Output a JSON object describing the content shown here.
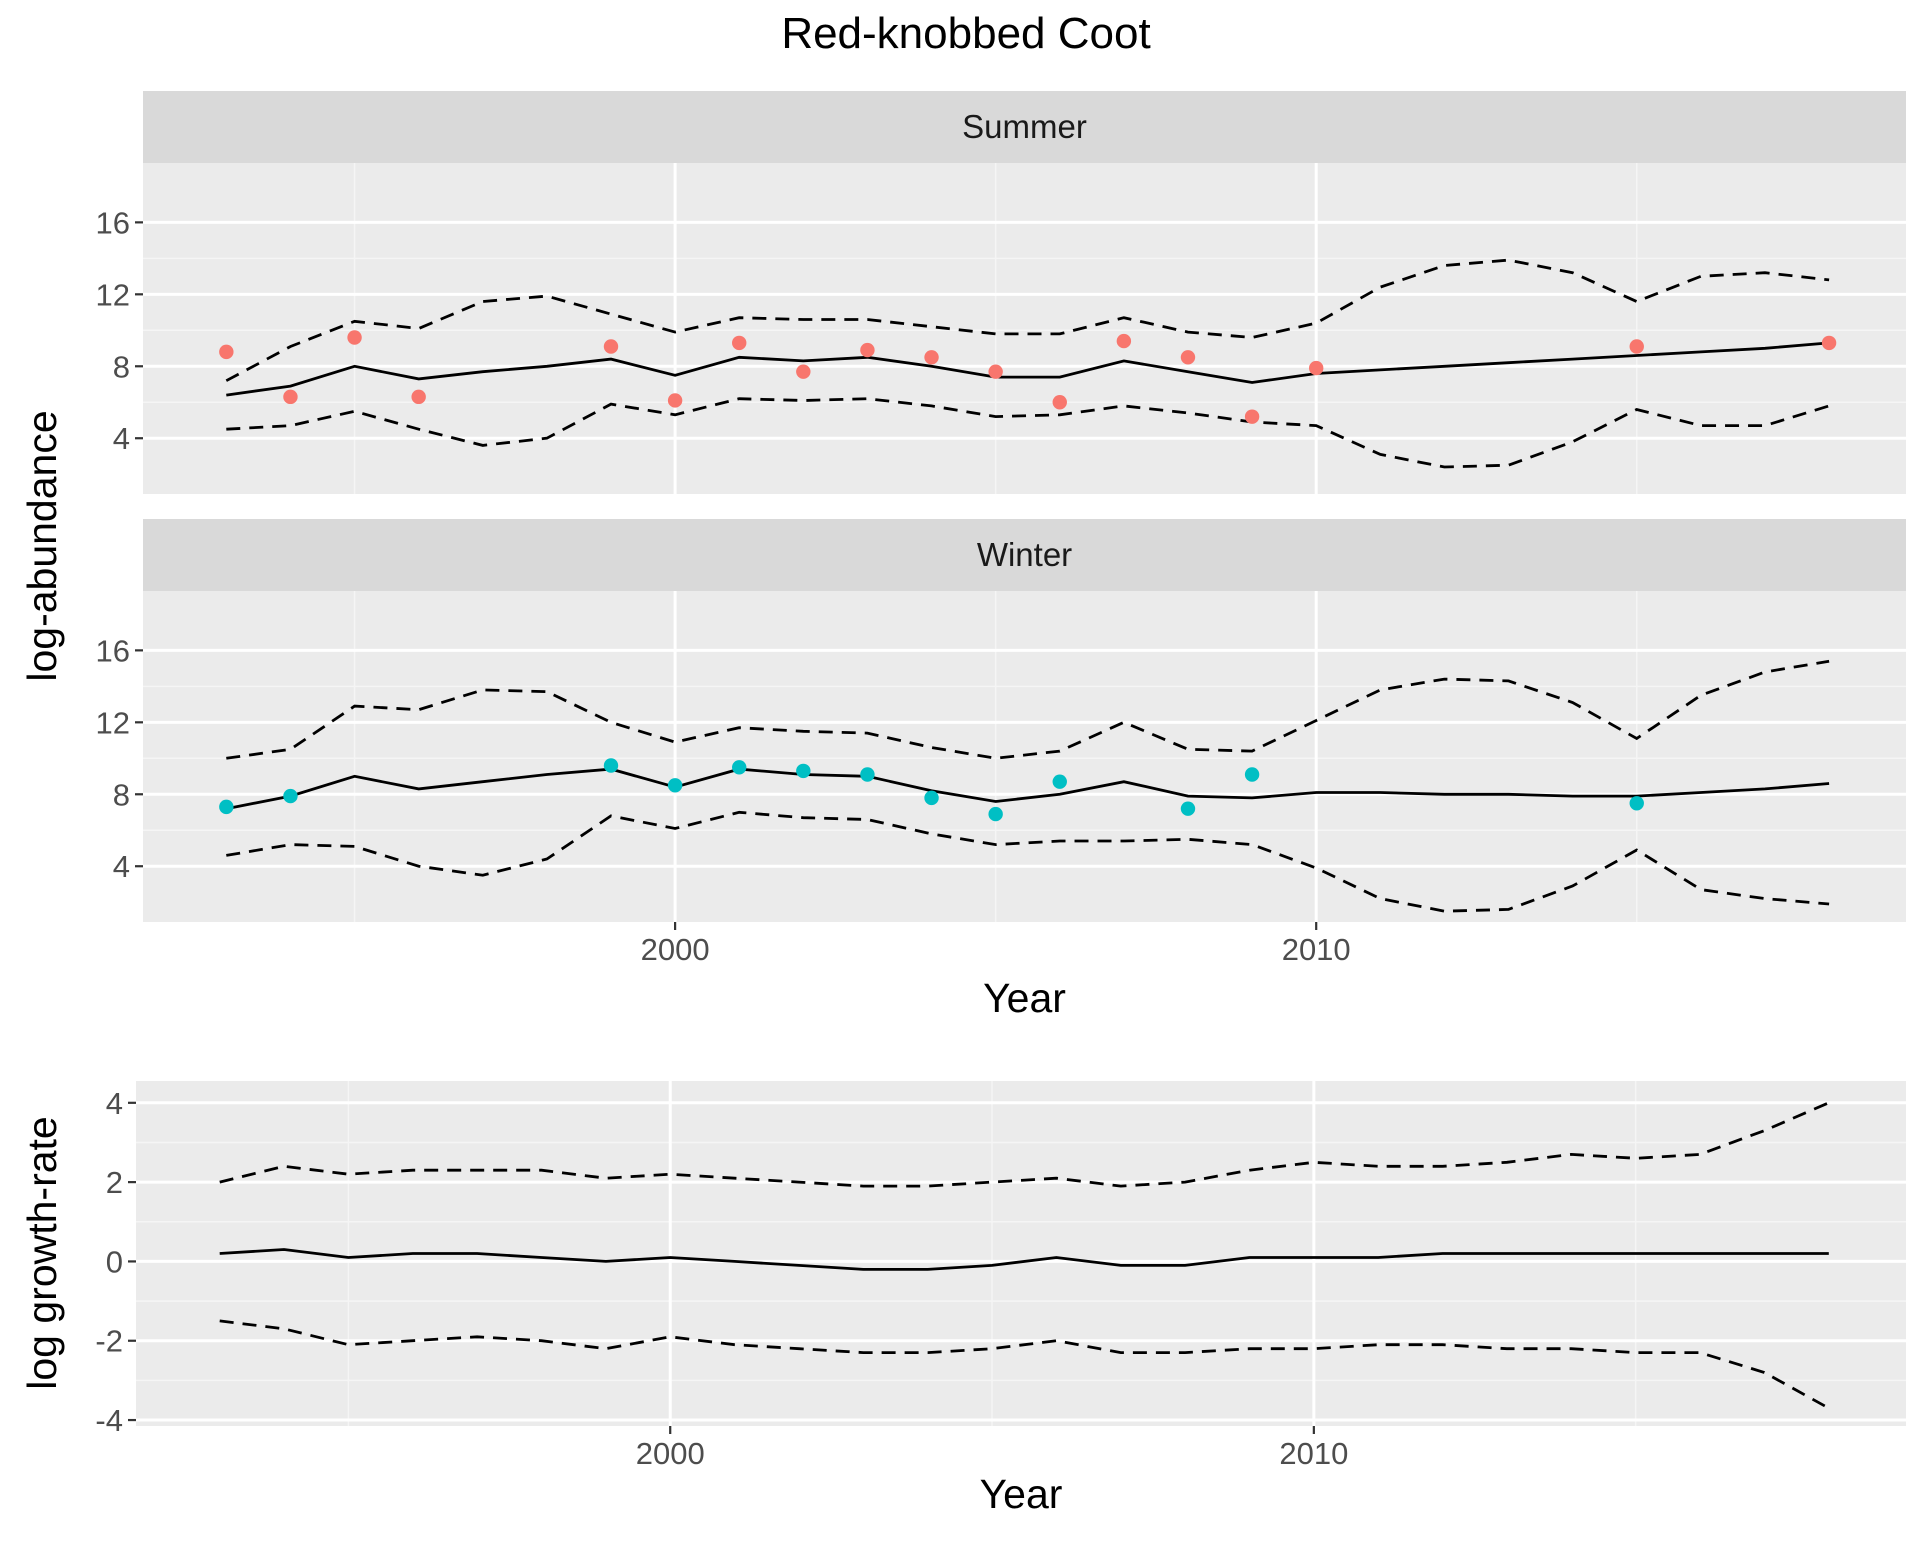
{
  "chart_data": {
    "title": "Red-knobbed Coot",
    "panels": [
      {
        "type": "line",
        "strip": "Summer",
        "ylabel": "log-abundance",
        "ylim": [
          0.9,
          19.3
        ],
        "yticks": [
          4,
          8,
          12,
          16
        ],
        "x": [
          1993,
          1994,
          1995,
          1996,
          1997,
          1998,
          1999,
          2000,
          2001,
          2002,
          2003,
          2004,
          2005,
          2006,
          2007,
          2008,
          2009,
          2010,
          2011,
          2012,
          2013,
          2014,
          2015,
          2016,
          2017,
          2018
        ],
        "fit": [
          6.4,
          6.9,
          8.0,
          7.3,
          7.7,
          8.0,
          8.4,
          7.5,
          8.5,
          8.3,
          8.5,
          8.0,
          7.4,
          7.4,
          8.3,
          7.7,
          7.1,
          7.6,
          7.8,
          8.0,
          8.2,
          8.4,
          8.6,
          8.8,
          9.0,
          9.3
        ],
        "upper": [
          7.2,
          9.1,
          10.5,
          10.1,
          11.6,
          11.9,
          10.9,
          9.9,
          10.7,
          10.6,
          10.6,
          10.2,
          9.8,
          9.8,
          10.7,
          9.9,
          9.6,
          10.4,
          12.4,
          13.6,
          13.9,
          13.2,
          11.6,
          13.0,
          13.2,
          12.8
        ],
        "lower": [
          4.5,
          4.7,
          5.5,
          4.5,
          3.6,
          4.0,
          5.9,
          5.3,
          6.2,
          6.1,
          6.2,
          5.8,
          5.2,
          5.3,
          5.8,
          5.4,
          4.9,
          4.7,
          3.1,
          2.4,
          2.5,
          3.8,
          5.6,
          4.7,
          4.7,
          5.8
        ],
        "points": {
          "color": "#F8766D",
          "x": [
            1993,
            1994,
            1995,
            1996,
            1999,
            2000,
            2001,
            2002,
            2003,
            2004,
            2005,
            2006,
            2007,
            2008,
            2009,
            2010,
            2015,
            2018
          ],
          "y": [
            8.8,
            6.3,
            9.6,
            6.3,
            9.1,
            6.1,
            9.3,
            7.7,
            8.9,
            8.5,
            7.7,
            6.0,
            9.4,
            8.5,
            5.2,
            7.9,
            9.1,
            9.3
          ]
        }
      },
      {
        "type": "line",
        "strip": "Winter",
        "ylabel": "log-abundance",
        "ylim": [
          0.9,
          19.3
        ],
        "yticks": [
          4,
          8,
          12,
          16
        ],
        "x": [
          1993,
          1994,
          1995,
          1996,
          1997,
          1998,
          1999,
          2000,
          2001,
          2002,
          2003,
          2004,
          2005,
          2006,
          2007,
          2008,
          2009,
          2010,
          2011,
          2012,
          2013,
          2014,
          2015,
          2016,
          2017,
          2018
        ],
        "fit": [
          7.2,
          7.9,
          9.0,
          8.3,
          8.7,
          9.1,
          9.4,
          8.4,
          9.4,
          9.1,
          9.0,
          8.2,
          7.6,
          8.0,
          8.7,
          7.9,
          7.8,
          8.1,
          8.1,
          8.0,
          8.0,
          7.9,
          7.9,
          8.1,
          8.3,
          8.6
        ],
        "upper": [
          10.0,
          10.5,
          12.9,
          12.7,
          13.8,
          13.7,
          12.0,
          10.9,
          11.7,
          11.5,
          11.4,
          10.6,
          10.0,
          10.4,
          12.0,
          10.5,
          10.4,
          12.1,
          13.8,
          14.4,
          14.3,
          13.1,
          11.1,
          13.5,
          14.8,
          15.4
        ],
        "lower": [
          4.6,
          5.2,
          5.1,
          4.0,
          3.5,
          4.4,
          6.8,
          6.1,
          7.0,
          6.7,
          6.6,
          5.8,
          5.2,
          5.4,
          5.4,
          5.5,
          5.2,
          3.9,
          2.2,
          1.5,
          1.6,
          2.9,
          4.9,
          2.7,
          2.2,
          1.9
        ],
        "points": {
          "color": "#00BFC4",
          "x": [
            1993,
            1994,
            1999,
            2000,
            2001,
            2002,
            2003,
            2004,
            2005,
            2006,
            2008,
            2009,
            2015
          ],
          "y": [
            7.3,
            7.9,
            9.6,
            8.5,
            9.5,
            9.3,
            9.1,
            7.8,
            6.9,
            8.7,
            7.2,
            9.1,
            7.5
          ]
        }
      },
      {
        "type": "line",
        "ylabel": "log growth-rate",
        "xlabel": "Year",
        "ylim": [
          -4.15,
          4.55
        ],
        "yticks": [
          -4,
          -2,
          0,
          2,
          4
        ],
        "x": [
          1993,
          1994,
          1995,
          1996,
          1997,
          1998,
          1999,
          2000,
          2001,
          2002,
          2003,
          2004,
          2005,
          2006,
          2007,
          2008,
          2009,
          2010,
          2011,
          2012,
          2013,
          2014,
          2015,
          2016,
          2017,
          2018
        ],
        "fit": [
          0.2,
          0.3,
          0.1,
          0.2,
          0.2,
          0.1,
          0.0,
          0.1,
          0.0,
          -0.1,
          -0.2,
          -0.2,
          -0.1,
          0.1,
          -0.1,
          -0.1,
          0.1,
          0.1,
          0.1,
          0.2,
          0.2,
          0.2,
          0.2,
          0.2,
          0.2,
          0.2
        ],
        "upper": [
          2.0,
          2.4,
          2.2,
          2.3,
          2.3,
          2.3,
          2.1,
          2.2,
          2.1,
          2.0,
          1.9,
          1.9,
          2.0,
          2.1,
          1.9,
          2.0,
          2.3,
          2.5,
          2.4,
          2.4,
          2.5,
          2.7,
          2.6,
          2.7,
          3.3,
          4.0
        ],
        "lower": [
          -1.5,
          -1.7,
          -2.1,
          -2.0,
          -1.9,
          -2.0,
          -2.2,
          -1.9,
          -2.1,
          -2.2,
          -2.3,
          -2.3,
          -2.2,
          -2.0,
          -2.3,
          -2.3,
          -2.2,
          -2.2,
          -2.1,
          -2.1,
          -2.2,
          -2.2,
          -2.3,
          -2.3,
          -2.8,
          -3.7
        ]
      }
    ],
    "xlim": [
      1991.7,
      2019.2
    ],
    "xticks": [
      2000,
      2010
    ],
    "xlabel": "Year",
    "grid": true,
    "legend": "none"
  }
}
